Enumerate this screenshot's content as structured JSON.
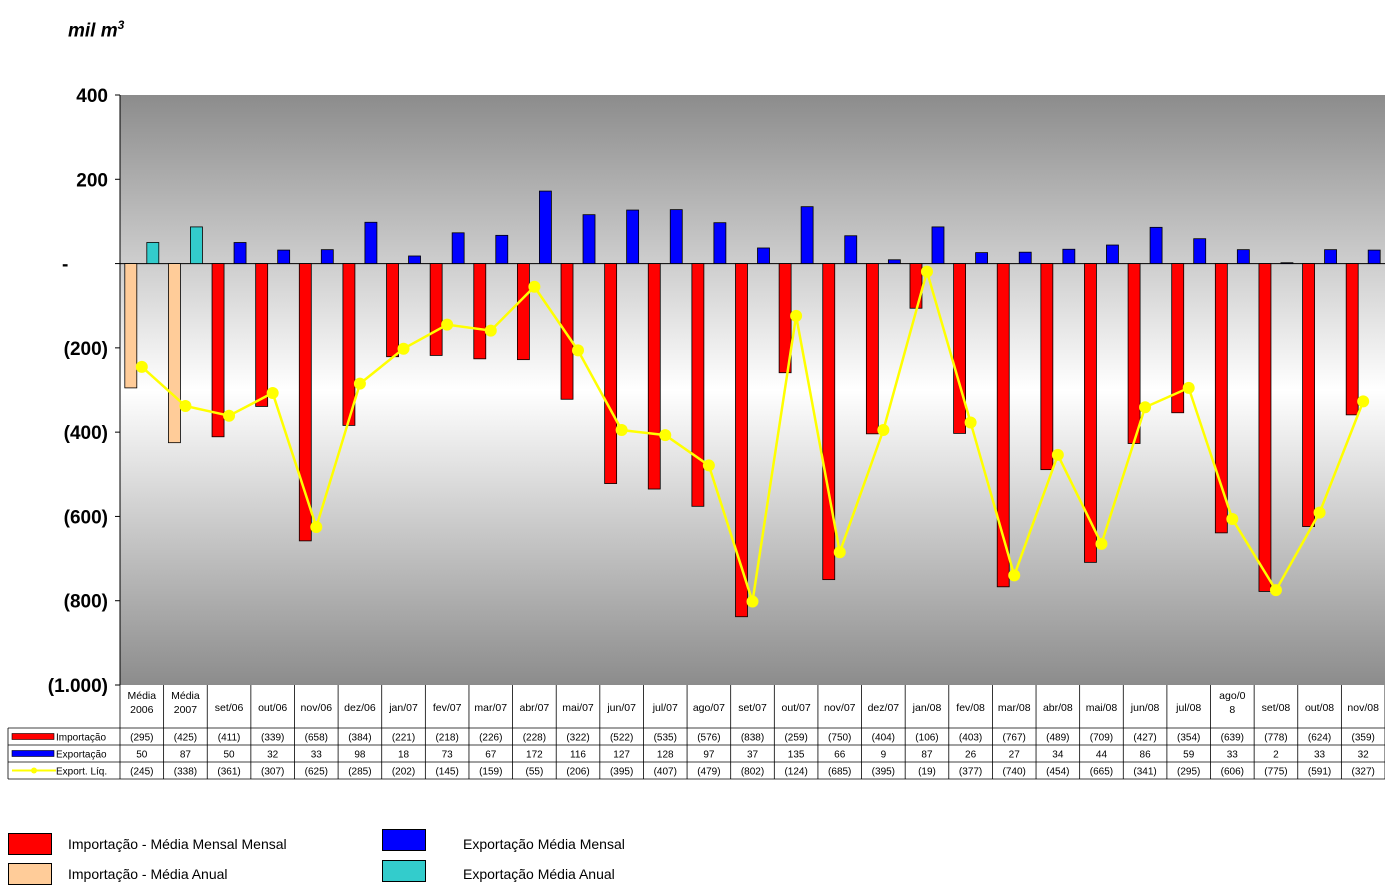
{
  "unit_label": "mil m",
  "unit_superscript": "3",
  "colors": {
    "import_monthly": "#ff0000",
    "import_annual": "#ffcc99",
    "export_monthly": "#0000ff",
    "export_annual": "#33cccc",
    "net_line": "#ffff00"
  },
  "legend": {
    "import_monthly": "Importação - Média Mensal Mensal",
    "import_annual": "Importação - Média Anual",
    "export_monthly": "Exportação Média Mensal",
    "export_annual": "Exportação Média Anual"
  },
  "chart_data": {
    "type": "bar",
    "title": "",
    "ylabel": "mil m³",
    "ylim": [
      -1000,
      400
    ],
    "yticks": [
      {
        "value": 400,
        "label": "400"
      },
      {
        "value": 200,
        "label": "200"
      },
      {
        "value": 0,
        "label": "-"
      },
      {
        "value": -200,
        "label": "(200)"
      },
      {
        "value": -400,
        "label": "(400)"
      },
      {
        "value": -600,
        "label": "(600)"
      },
      {
        "value": -800,
        "label": "(800)"
      },
      {
        "value": -1000,
        "label": "(1.000)"
      }
    ],
    "categories": [
      "Média 2006",
      "Média 2007",
      "set/06",
      "out/06",
      "nov/06",
      "dez/06",
      "jan/07",
      "fev/07",
      "mar/07",
      "abr/07",
      "mai/07",
      "jun/07",
      "jul/07",
      "ago/07",
      "set/07",
      "out/07",
      "nov/07",
      "dez/07",
      "jan/08",
      "fev/08",
      "mar/08",
      "abr/08",
      "mai/08",
      "jun/08",
      "jul/08",
      "ago/08",
      "set/08",
      "out/08",
      "nov/08"
    ],
    "category_labels": [
      [
        "Média",
        "2006"
      ],
      [
        "Média",
        "2007"
      ],
      [
        "set/06"
      ],
      [
        "out/06"
      ],
      [
        "nov/06"
      ],
      [
        "dez/06"
      ],
      [
        "jan/07"
      ],
      [
        "fev/07"
      ],
      [
        "mar/07"
      ],
      [
        "abr/07"
      ],
      [
        "mai/07"
      ],
      [
        "jun/07"
      ],
      [
        "jul/07"
      ],
      [
        "ago/07"
      ],
      [
        "set/07"
      ],
      [
        "out/07"
      ],
      [
        "nov/07"
      ],
      [
        "dez/07"
      ],
      [
        "jan/08"
      ],
      [
        "fev/08"
      ],
      [
        "mar/08"
      ],
      [
        "abr/08"
      ],
      [
        "mai/08"
      ],
      [
        "jun/08"
      ],
      [
        "jul/08"
      ],
      [
        "ago/0",
        "8"
      ],
      [
        "set/08"
      ],
      [
        "out/08"
      ],
      [
        "nov/08"
      ]
    ],
    "series": [
      {
        "name": "Importação",
        "values": [
          -295,
          -425,
          -411,
          -339,
          -658,
          -384,
          -221,
          -218,
          -226,
          -228,
          -322,
          -522,
          -535,
          -576,
          -838,
          -259,
          -750,
          -404,
          -106,
          -403,
          -767,
          -489,
          -709,
          -427,
          -354,
          -639,
          -778,
          -624,
          -359
        ]
      },
      {
        "name": "Exportação",
        "values": [
          50,
          87,
          50,
          32,
          33,
          98,
          18,
          73,
          67,
          172,
          116,
          127,
          128,
          97,
          37,
          135,
          66,
          9,
          87,
          26,
          27,
          34,
          44,
          86,
          59,
          33,
          2,
          33,
          32
        ]
      },
      {
        "name": "Export. Líq.",
        "values": [
          -245,
          -338,
          -361,
          -307,
          -625,
          -285,
          -202,
          -145,
          -159,
          -55,
          -206,
          -395,
          -407,
          -479,
          -802,
          -124,
          -685,
          -395,
          -19,
          -377,
          -740,
          -454,
          -665,
          -341,
          -295,
          -606,
          -775,
          -591,
          -327
        ]
      }
    ],
    "table": {
      "rows": [
        {
          "label": "Importação",
          "cells": [
            "(295)",
            "(425)",
            "(411)",
            "(339)",
            "(658)",
            "(384)",
            "(221)",
            "(218)",
            "(226)",
            "(228)",
            "(322)",
            "(522)",
            "(535)",
            "(576)",
            "(838)",
            "(259)",
            "(750)",
            "(404)",
            "(106)",
            "(403)",
            "(767)",
            "(489)",
            "(709)",
            "(427)",
            "(354)",
            "(639)",
            "(778)",
            "(624)",
            "(359)"
          ]
        },
        {
          "label": "Exportação",
          "cells": [
            "50",
            "87",
            "50",
            "32",
            "33",
            "98",
            "18",
            "73",
            "67",
            "172",
            "116",
            "127",
            "128",
            "97",
            "37",
            "135",
            "66",
            "9",
            "87",
            "26",
            "27",
            "34",
            "44",
            "86",
            "59",
            "33",
            "2",
            "33",
            "32"
          ]
        },
        {
          "label": "Export. Líq.",
          "cells": [
            "(245)",
            "(338)",
            "(361)",
            "(307)",
            "(625)",
            "(285)",
            "(202)",
            "(145)",
            "(159)",
            "(55)",
            "(206)",
            "(395)",
            "(407)",
            "(479)",
            "(802)",
            "(124)",
            "(685)",
            "(395)",
            "(19)",
            "(377)",
            "(740)",
            "(454)",
            "(665)",
            "(341)",
            "(295)",
            "(606)",
            "(775)",
            "(591)",
            "(327)"
          ]
        }
      ]
    },
    "grid": false,
    "legend_position": "bottom"
  }
}
